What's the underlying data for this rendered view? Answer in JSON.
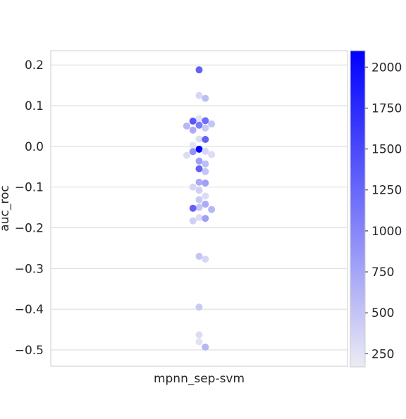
{
  "chart_data": {
    "type": "scatter",
    "subtype": "swarm",
    "title": "",
    "xlabel": "",
    "ylabel": "auc_roc",
    "categories": [
      "mpnn_sep-svm"
    ],
    "ylim": [
      -0.54,
      0.235
    ],
    "yticks": [
      0.2,
      0.1,
      0.0,
      -0.1,
      -0.2,
      -0.3,
      -0.4,
      -0.5
    ],
    "ytick_labels": [
      "0.2",
      "0.1",
      "0.0",
      "−0.1",
      "−0.2",
      "−0.3",
      "−0.4",
      "−0.5"
    ],
    "grid": "horizontal",
    "colorbar": {
      "range": [
        170,
        2100
      ],
      "ticks": [
        250,
        500,
        750,
        1000,
        1250,
        1500,
        1750,
        2000
      ],
      "tick_labels": [
        "250",
        "500",
        "750",
        "1000",
        "1250",
        "1500",
        "1750",
        "2000"
      ],
      "color_low": "#ececf4",
      "color_high": "#0000ff"
    },
    "points": [
      {
        "x": "mpnn_sep-svm",
        "y": 0.188,
        "c": 1300
      },
      {
        "x": "mpnn_sep-svm",
        "y": 0.125,
        "c": 350
      },
      {
        "x": "mpnn_sep-svm",
        "y": 0.118,
        "c": 550
      },
      {
        "x": "mpnn_sep-svm",
        "y": 0.068,
        "c": 250
      },
      {
        "x": "mpnn_sep-svm",
        "y": 0.063,
        "c": 1200
      },
      {
        "x": "mpnn_sep-svm",
        "y": 0.062,
        "c": 1400
      },
      {
        "x": "mpnn_sep-svm",
        "y": 0.055,
        "c": 500
      },
      {
        "x": "mpnn_sep-svm",
        "y": 0.052,
        "c": 1100
      },
      {
        "x": "mpnn_sep-svm",
        "y": 0.05,
        "c": 600
      },
      {
        "x": "mpnn_sep-svm",
        "y": 0.045,
        "c": 450
      },
      {
        "x": "mpnn_sep-svm",
        "y": 0.04,
        "c": 700
      },
      {
        "x": "mpnn_sep-svm",
        "y": 0.018,
        "c": 300
      },
      {
        "x": "mpnn_sep-svm",
        "y": 0.017,
        "c": 1300
      },
      {
        "x": "mpnn_sep-svm",
        "y": 0.003,
        "c": 250
      },
      {
        "x": "mpnn_sep-svm",
        "y": -0.007,
        "c": 2100
      },
      {
        "x": "mpnn_sep-svm",
        "y": -0.012,
        "c": 350
      },
      {
        "x": "mpnn_sep-svm",
        "y": -0.013,
        "c": 900
      },
      {
        "x": "mpnn_sep-svm",
        "y": -0.02,
        "c": 300
      },
      {
        "x": "mpnn_sep-svm",
        "y": -0.022,
        "c": 300
      },
      {
        "x": "mpnn_sep-svm",
        "y": -0.036,
        "c": 800
      },
      {
        "x": "mpnn_sep-svm",
        "y": -0.043,
        "c": 550
      },
      {
        "x": "mpnn_sep-svm",
        "y": -0.055,
        "c": 1300
      },
      {
        "x": "mpnn_sep-svm",
        "y": -0.062,
        "c": 500
      },
      {
        "x": "mpnn_sep-svm",
        "y": -0.088,
        "c": 700
      },
      {
        "x": "mpnn_sep-svm",
        "y": -0.09,
        "c": 800
      },
      {
        "x": "mpnn_sep-svm",
        "y": -0.1,
        "c": 350
      },
      {
        "x": "mpnn_sep-svm",
        "y": -0.108,
        "c": 400
      },
      {
        "x": "mpnn_sep-svm",
        "y": -0.122,
        "c": 300
      },
      {
        "x": "mpnn_sep-svm",
        "y": -0.131,
        "c": 450
      },
      {
        "x": "mpnn_sep-svm",
        "y": -0.142,
        "c": 700
      },
      {
        "x": "mpnn_sep-svm",
        "y": -0.15,
        "c": 500
      },
      {
        "x": "mpnn_sep-svm",
        "y": -0.152,
        "c": 1300
      },
      {
        "x": "mpnn_sep-svm",
        "y": -0.155,
        "c": 600
      },
      {
        "x": "mpnn_sep-svm",
        "y": -0.175,
        "c": 300
      },
      {
        "x": "mpnn_sep-svm",
        "y": -0.177,
        "c": 800
      },
      {
        "x": "mpnn_sep-svm",
        "y": -0.183,
        "c": 400
      },
      {
        "x": "mpnn_sep-svm",
        "y": -0.27,
        "c": 500
      },
      {
        "x": "mpnn_sep-svm",
        "y": -0.277,
        "c": 350
      },
      {
        "x": "mpnn_sep-svm",
        "y": -0.395,
        "c": 450
      },
      {
        "x": "mpnn_sep-svm",
        "y": -0.463,
        "c": 300
      },
      {
        "x": "mpnn_sep-svm",
        "y": -0.48,
        "c": 250
      },
      {
        "x": "mpnn_sep-svm",
        "y": -0.493,
        "c": 600
      }
    ]
  }
}
